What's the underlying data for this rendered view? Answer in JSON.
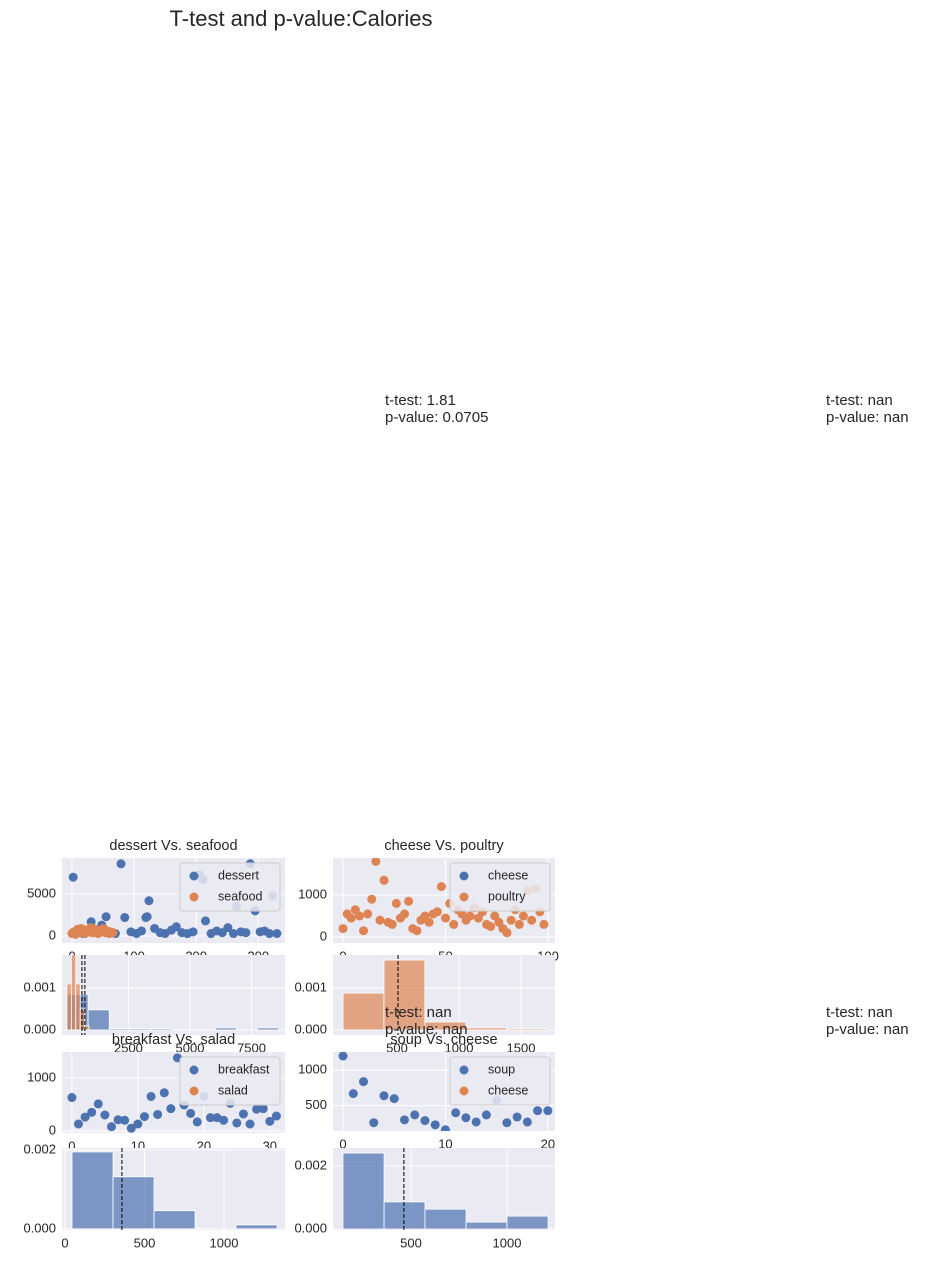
{
  "title": "T-test and p-value:Calories",
  "annotations": [
    {
      "lines": [
        "t-test: 1.81",
        "p-value: 0.0705"
      ]
    },
    {
      "lines": [
        "t-test: nan",
        "p-value: nan"
      ]
    },
    {
      "lines": [
        "t-test: nan",
        "p-value: nan"
      ]
    },
    {
      "lines": [
        "t-test: nan",
        "p-value: nan"
      ]
    }
  ],
  "chart_data": [
    {
      "type": "scatter",
      "title": "dessert Vs. seafood",
      "grid": true,
      "legend": "upper right",
      "xlim": [
        -16,
        343
      ],
      "ylim": [
        -830,
        9290
      ],
      "xticks": [
        0,
        100,
        200,
        300
      ],
      "yticks": [
        0,
        5000
      ],
      "series": [
        {
          "name": "dessert",
          "color": "#4c72b0",
          "x": [
            2,
            10,
            18,
            26,
            31,
            40,
            48,
            55,
            62,
            70,
            79,
            85,
            95,
            104,
            112,
            119,
            121,
            124,
            133,
            142,
            150,
            160,
            168,
            177,
            186,
            195,
            205,
            211,
            215,
            224,
            233,
            242,
            251,
            260,
            265,
            272,
            280,
            287,
            295,
            303,
            310,
            318,
            323,
            330
          ],
          "values": [
            7000,
            400,
            300,
            600,
            1700,
            500,
            1300,
            2300,
            400,
            300,
            8600,
            2200,
            500,
            300,
            600,
            2200,
            2300,
            4200,
            900,
            400,
            300,
            700,
            1100,
            400,
            300,
            500,
            7300,
            6700,
            1800,
            300,
            600,
            400,
            1000,
            300,
            3500,
            500,
            400,
            8600,
            3000,
            500,
            600,
            300,
            4800,
            300
          ]
        },
        {
          "name": "seafood",
          "color": "#dd8452",
          "x": [
            0,
            3,
            6,
            9,
            12,
            15,
            18,
            21,
            24,
            27,
            30,
            33,
            36,
            39,
            42,
            45,
            48,
            51,
            54,
            57,
            60,
            63,
            66
          ],
          "values": [
            300,
            500,
            200,
            800,
            400,
            900,
            600,
            300,
            700,
            500,
            1000,
            400,
            800,
            600,
            300,
            700,
            500,
            900,
            400,
            600,
            300,
            500,
            400
          ]
        }
      ]
    },
    {
      "type": "histogram",
      "grid": true,
      "xlim": [
        -200,
        8860
      ],
      "ylim": [
        -0.00012,
        0.00179
      ],
      "xticks": [
        2500,
        5000,
        7500
      ],
      "yticks": [
        {
          "value": 0,
          "label": "0.000"
        },
        0.001
      ],
      "series": [
        {
          "color": "#4c72b0",
          "bins": [
            0,
            860,
            1720,
            2580,
            3440,
            4300,
            5160,
            6020,
            6880,
            7740,
            8600
          ],
          "values": [
            0.00085,
            0.00048,
            3e-05,
            3e-05,
            3e-05,
            0,
            0,
            5e-05,
            0,
            5e-05
          ],
          "mean": 730
        },
        {
          "color": "#dd8452",
          "bins": [
            0,
            180,
            360,
            540,
            720,
            900
          ],
          "values": [
            0.0011,
            0.0018,
            0.0011,
            0.0005,
            0.0001
          ],
          "mean": 610
        }
      ]
    },
    {
      "type": "scatter",
      "title": "cheese Vs. poultry",
      "grid": true,
      "legend": "upper right",
      "xlim": [
        -4.9,
        103.4
      ],
      "ylim": [
        -143,
        1881
      ],
      "xticks": [
        0,
        50,
        100
      ],
      "yticks": [
        0,
        1000
      ],
      "series": [
        {
          "name": "cheese",
          "color": "#4c72b0",
          "x": [],
          "values": []
        },
        {
          "name": "poultry",
          "color": "#dd8452",
          "x": [
            0,
            2,
            4,
            6,
            8,
            10,
            12,
            14,
            16,
            18,
            20,
            22,
            24,
            26,
            28,
            30,
            32,
            34,
            36,
            38,
            40,
            42,
            44,
            46,
            48,
            50,
            52,
            54,
            56,
            58,
            60,
            62,
            64,
            66,
            68,
            70,
            72,
            74,
            76,
            78,
            80,
            82,
            84,
            86,
            88,
            90,
            92,
            94,
            96,
            98
          ],
          "values": [
            200,
            550,
            450,
            650,
            500,
            150,
            550,
            900,
            1800,
            400,
            1350,
            350,
            300,
            800,
            450,
            550,
            850,
            200,
            150,
            400,
            500,
            350,
            550,
            600,
            1200,
            450,
            800,
            300,
            650,
            550,
            400,
            500,
            700,
            450,
            600,
            300,
            250,
            500,
            350,
            200,
            100,
            400,
            650,
            300,
            500,
            1100,
            400,
            1150,
            600,
            300
          ]
        }
      ]
    },
    {
      "type": "histogram",
      "grid": true,
      "xlim": [
        -16,
        1774
      ],
      "ylim": [
        -0.00012,
        0.00179
      ],
      "xticks": [
        500,
        1000,
        1500
      ],
      "yticks": [
        {
          "value": 0,
          "label": "0.000"
        },
        0.001
      ],
      "series": [
        {
          "color": "#dd8452",
          "bins": [
            65,
            395,
            725,
            1055,
            1385,
            1715
          ],
          "values": [
            0.00088,
            0.00167,
            0.00019,
            5e-05,
            3e-05
          ],
          "mean": 508
        }
      ]
    },
    {
      "type": "scatter",
      "title": "breakfast Vs. salad",
      "grid": true,
      "legend": "upper right",
      "xlim": [
        -1.5,
        32.3
      ],
      "ylim": [
        -40,
        1490
      ],
      "xticks": [
        0,
        10,
        20,
        30
      ],
      "yticks": [
        0,
        1000
      ],
      "series": [
        {
          "name": "breakfast",
          "color": "#4c72b0",
          "x": [
            0,
            1,
            2,
            3,
            4,
            5,
            6,
            7,
            8,
            9,
            10,
            11,
            12,
            13,
            14,
            15,
            16,
            17,
            18,
            19,
            20,
            21,
            22,
            23,
            24,
            25,
            26,
            27,
            28,
            29,
            30,
            31
          ],
          "values": [
            630,
            130,
            260,
            350,
            510,
            300,
            80,
            210,
            200,
            50,
            130,
            270,
            650,
            310,
            720,
            420,
            1380,
            490,
            330,
            170,
            650,
            250,
            250,
            200,
            520,
            150,
            320,
            130,
            410,
            420,
            180,
            280
          ]
        },
        {
          "name": "salad",
          "color": "#dd8452",
          "x": [],
          "values": []
        }
      ]
    },
    {
      "type": "histogram",
      "grid": true,
      "xlim": [
        -19,
        1384
      ],
      "ylim": [
        -3e-05,
        0.00205
      ],
      "xticks": [
        0,
        500,
        1000
      ],
      "yticks": [
        {
          "value": 0,
          "label": "0.000"
        },
        0.002
      ],
      "series": [
        {
          "color": "#4c72b0",
          "bins": [
            44,
            302,
            560,
            818,
            1076,
            1334
          ],
          "values": [
            0.00195,
            0.00132,
            0.00046,
            0,
            0.0001
          ],
          "mean": 358
        }
      ]
    },
    {
      "type": "scatter",
      "title": "soup Vs. cheese",
      "grid": true,
      "legend": "upper right",
      "xlim": [
        -0.98,
        20.7
      ],
      "ylim": [
        143,
        1257
      ],
      "xticks": [
        0,
        10,
        20
      ],
      "yticks": [
        500,
        1000
      ],
      "series": [
        {
          "name": "soup",
          "color": "#4c72b0",
          "x": [
            0,
            1,
            2,
            3,
            4,
            5,
            6,
            7,
            8,
            9,
            10,
            11,
            12,
            13,
            14,
            15,
            16,
            17,
            18,
            19,
            20
          ],
          "values": [
            1200,
            670,
            840,
            260,
            640,
            600,
            300,
            370,
            290,
            230,
            160,
            400,
            330,
            270,
            370,
            570,
            260,
            340,
            270,
            430,
            430
          ]
        },
        {
          "name": "cheese",
          "color": "#dd8452",
          "x": [],
          "values": []
        }
      ]
    },
    {
      "type": "histogram",
      "grid": true,
      "xlim": [
        94,
        1250
      ],
      "ylim": [
        -3e-05,
        0.00257
      ],
      "xticks": [
        500,
        1000
      ],
      "yticks": [
        {
          "value": 0,
          "label": "0.000"
        },
        0.002
      ],
      "series": [
        {
          "color": "#4c72b0",
          "bins": [
            146,
            360,
            573,
            787,
            1000,
            1214
          ],
          "values": [
            0.00241,
            0.00086,
            0.00063,
            0.00022,
            0.00041
          ],
          "mean": 463
        }
      ]
    }
  ]
}
